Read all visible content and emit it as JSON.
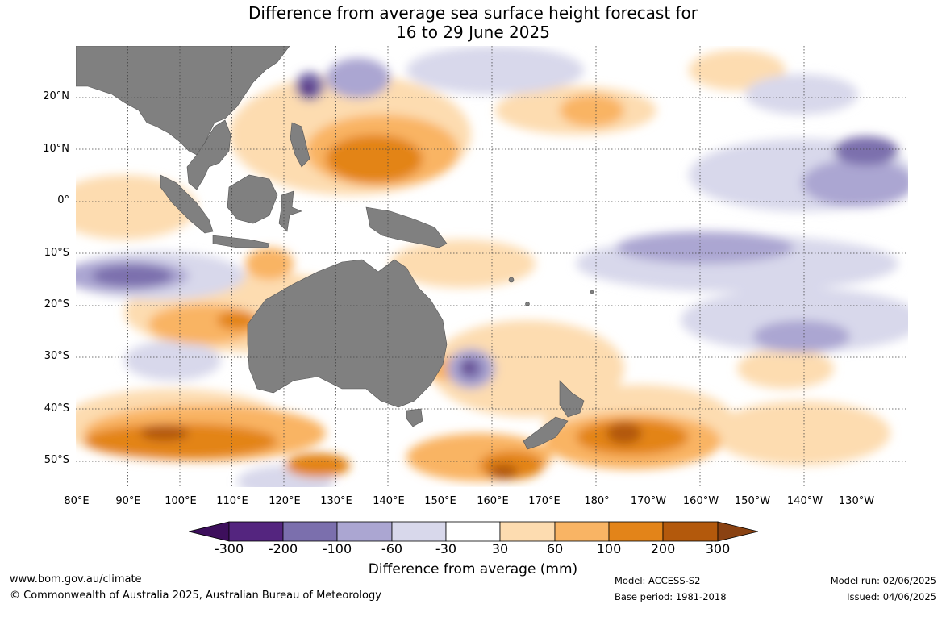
{
  "title": {
    "line1": "Difference from average sea surface height forecast for",
    "line2": "16 to 29 June 2025"
  },
  "axes": {
    "lat_labels": [
      "20°N",
      "10°N",
      "0°",
      "10°S",
      "20°S",
      "30°S",
      "40°S",
      "50°S"
    ],
    "lon_labels": [
      "80°E",
      "90°E",
      "100°E",
      "110°E",
      "120°E",
      "130°E",
      "140°E",
      "150°E",
      "160°E",
      "170°E",
      "180°",
      "170°W",
      "160°W",
      "150°W",
      "140°W",
      "130°W"
    ],
    "lon_range": [
      80,
      240
    ],
    "lat_range": [
      -55,
      30
    ]
  },
  "legend": {
    "title": "Difference from average (mm)",
    "tick_labels": [
      "-300",
      "-200",
      "-100",
      "-60",
      "-30",
      "30",
      "60",
      "100",
      "200",
      "300"
    ],
    "colors": [
      "#3d0f5c",
      "#54257f",
      "#7b6fad",
      "#aba6d2",
      "#d8d8eb",
      "#ffffff",
      "#fddcb0",
      "#f9b464",
      "#e38419",
      "#b3590c",
      "#8a4212"
    ]
  },
  "colors": {
    "land": "#808080",
    "grid": "#444444"
  },
  "footer": {
    "website": "www.bom.gov.au/climate",
    "copyright": "© Commonwealth of Australia 2025, Australian Bureau of Meteorology",
    "model": "Model: ACCESS-S2",
    "base_period": "Base period: 1981-2018",
    "model_run": "Model run: 02/06/2025",
    "issued": "Issued: 04/06/2025"
  }
}
